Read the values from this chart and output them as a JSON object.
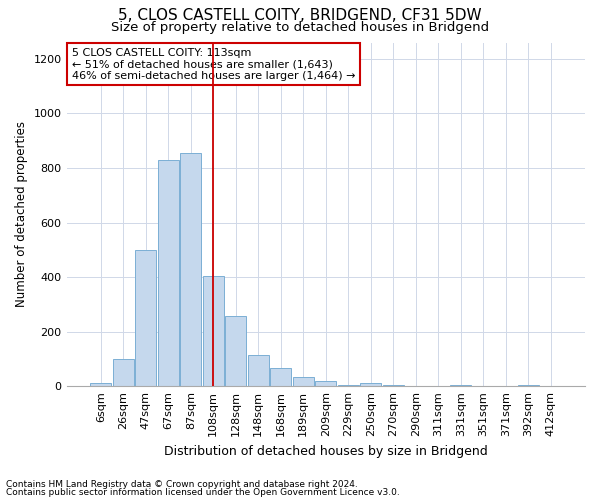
{
  "title": "5, CLOS CASTELL COITY, BRIDGEND, CF31 5DW",
  "subtitle": "Size of property relative to detached houses in Bridgend",
  "xlabel": "Distribution of detached houses by size in Bridgend",
  "ylabel": "Number of detached properties",
  "footnote1": "Contains HM Land Registry data © Crown copyright and database right 2024.",
  "footnote2": "Contains public sector information licensed under the Open Government Licence v3.0.",
  "categories": [
    "6sqm",
    "26sqm",
    "47sqm",
    "67sqm",
    "87sqm",
    "108sqm",
    "128sqm",
    "148sqm",
    "168sqm",
    "189sqm",
    "209sqm",
    "229sqm",
    "250sqm",
    "270sqm",
    "290sqm",
    "311sqm",
    "331sqm",
    "351sqm",
    "371sqm",
    "392sqm",
    "412sqm"
  ],
  "values": [
    10,
    100,
    500,
    830,
    855,
    405,
    258,
    115,
    68,
    33,
    20,
    5,
    10,
    5,
    0,
    0,
    5,
    0,
    0,
    5,
    0
  ],
  "bar_color": "#c5d8ed",
  "bar_edge_color": "#7bafd4",
  "vline_x_index": 5,
  "vline_color": "#cc0000",
  "annotation_text": "5 CLOS CASTELL COITY: 113sqm\n← 51% of detached houses are smaller (1,643)\n46% of semi-detached houses are larger (1,464) →",
  "annotation_box_color": "#ffffff",
  "annotation_box_edge": "#cc0000",
  "ylim": [
    0,
    1260
  ],
  "yticks": [
    0,
    200,
    400,
    600,
    800,
    1000,
    1200
  ],
  "background_color": "#ffffff",
  "grid_color": "#d0d8e8",
  "title_fontsize": 11,
  "subtitle_fontsize": 9.5,
  "xlabel_fontsize": 9,
  "ylabel_fontsize": 8.5,
  "tick_fontsize": 8,
  "footnote_fontsize": 6.5,
  "annotation_fontsize": 8
}
